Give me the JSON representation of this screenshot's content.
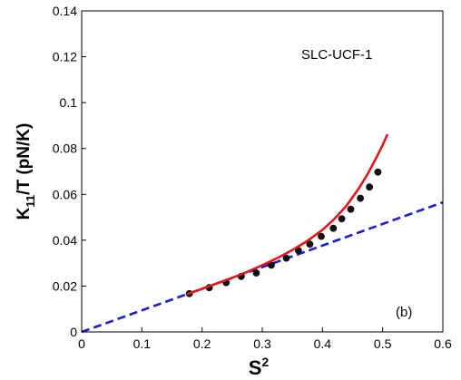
{
  "chart_data": {
    "type": "scatter",
    "xlim": [
      0,
      0.6
    ],
    "ylim": [
      0,
      0.14
    ],
    "x_ticks": [
      "0",
      "0.1",
      "0.2",
      "0.3",
      "0.4",
      "0.5",
      "0.6"
    ],
    "y_ticks": [
      "0",
      "0.02",
      "0.04",
      "0.06",
      "0.08",
      "0.1",
      "0.12",
      "0.14"
    ],
    "xlabel": {
      "base": "S",
      "sup": "2"
    },
    "ylabel": {
      "pre": "K",
      "sub": "11",
      "post": "/T (pN/K)"
    },
    "annotations": {
      "label": "SLC-UCF-1",
      "panel": "(b)"
    },
    "grid": false,
    "series": [
      {
        "kind": "markers",
        "color": "#111111",
        "x": [
          0.179,
          0.212,
          0.24,
          0.265,
          0.29,
          0.315,
          0.34,
          0.36,
          0.379,
          0.398,
          0.418,
          0.432,
          0.447,
          0.463,
          0.478,
          0.492
        ],
        "y": [
          0.0167,
          0.0193,
          0.0215,
          0.0242,
          0.0257,
          0.0291,
          0.0322,
          0.0355,
          0.0383,
          0.0417,
          0.0452,
          0.0493,
          0.0535,
          0.0583,
          0.0632,
          0.0697
        ]
      },
      {
        "kind": "line",
        "style": "solid",
        "color": "#e8141b",
        "x": [
          0.175,
          0.2,
          0.225,
          0.25,
          0.275,
          0.3,
          0.325,
          0.35,
          0.375,
          0.4,
          0.42,
          0.44,
          0.46,
          0.475,
          0.49,
          0.5,
          0.508
        ],
        "y": [
          0.0165,
          0.0188,
          0.0212,
          0.0236,
          0.0262,
          0.0291,
          0.0322,
          0.0357,
          0.0397,
          0.0445,
          0.0493,
          0.0551,
          0.0624,
          0.0688,
          0.0762,
          0.0815,
          0.0862
        ]
      },
      {
        "kind": "line",
        "style": "dashed",
        "color": "#1c1cd6",
        "x": [
          0,
          0.6
        ],
        "y": [
          0,
          0.0565
        ]
      }
    ]
  }
}
